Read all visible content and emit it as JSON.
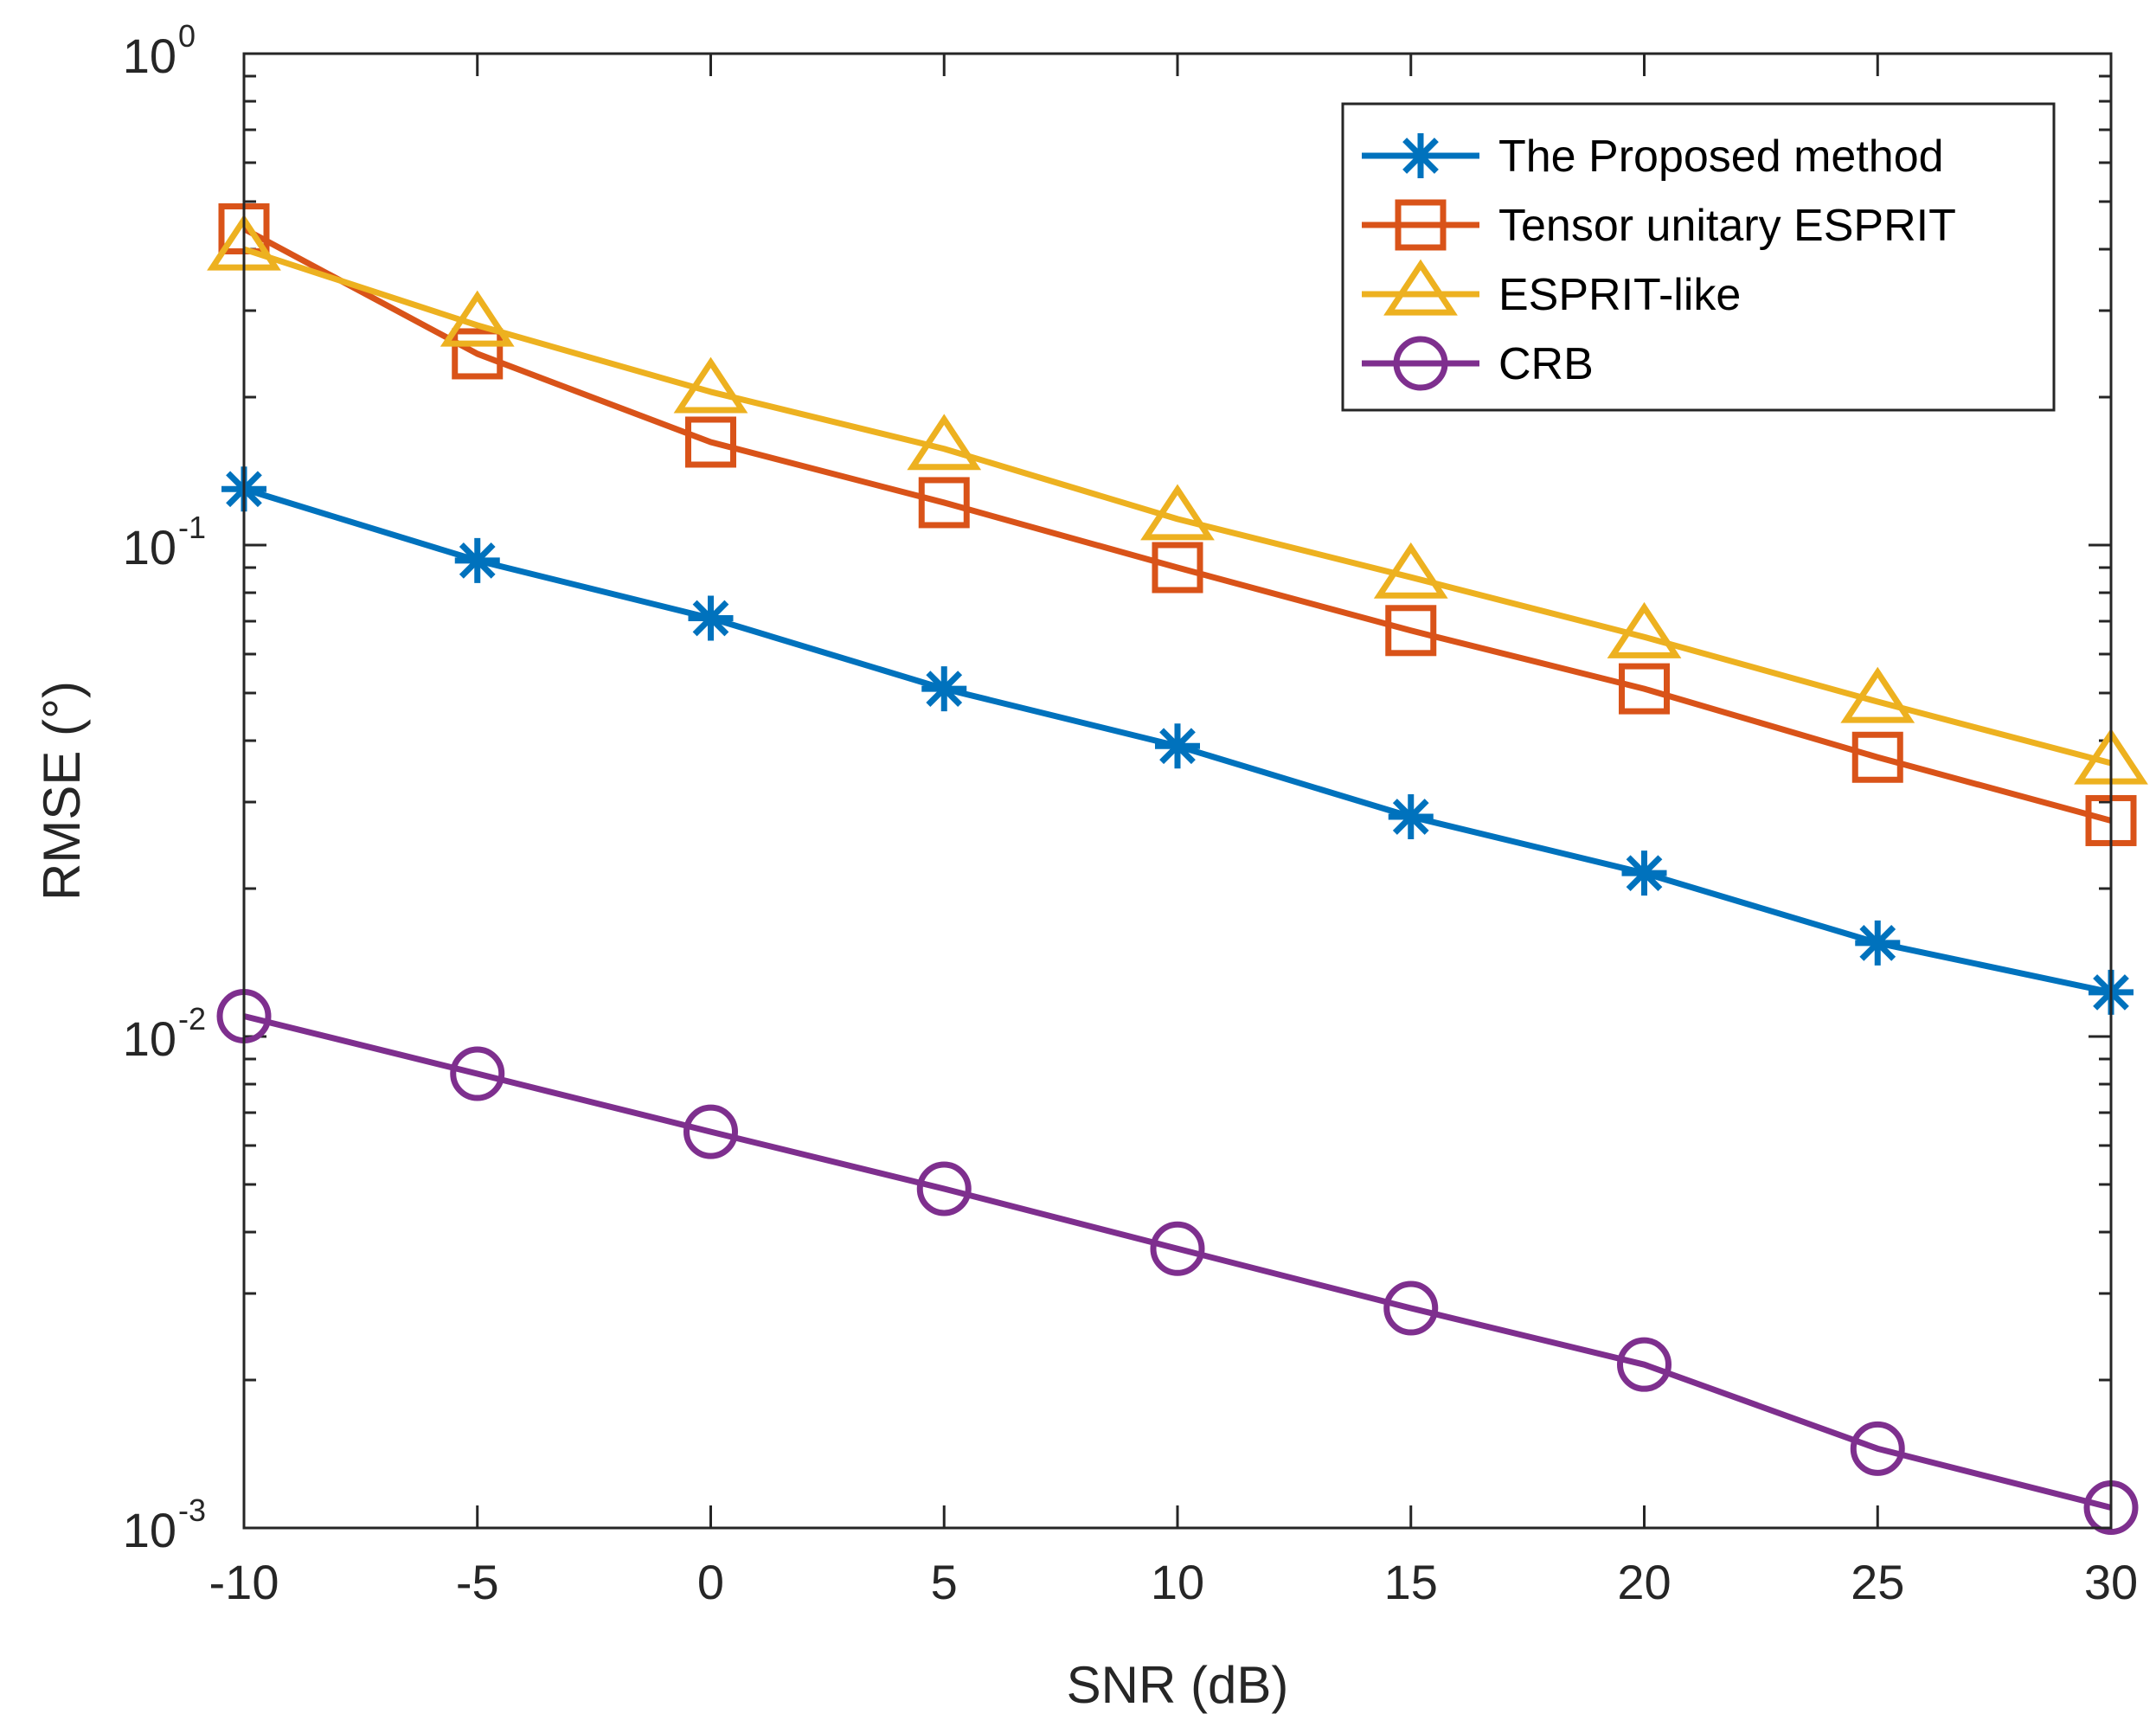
{
  "chart_data": {
    "type": "line",
    "title": "",
    "xlabel": "SNR (dB)",
    "ylabel": "RMSE (°)",
    "yscale": "log",
    "x": [
      -10,
      -5,
      0,
      5,
      10,
      15,
      20,
      25,
      30
    ],
    "xlim": [
      -10,
      30
    ],
    "ylim": [
      0.001,
      1
    ],
    "x_ticks": [
      -10,
      -5,
      0,
      5,
      10,
      15,
      20,
      25,
      30
    ],
    "x_tick_labels": [
      "-10",
      "-5",
      "0",
      "5",
      "10",
      "15",
      "20",
      "25",
      "30"
    ],
    "y_ticks": [
      {
        "value": 0.001,
        "base": "10",
        "exp": "-3"
      },
      {
        "value": 0.01,
        "base": "10",
        "exp": "-2"
      },
      {
        "value": 0.1,
        "base": "10",
        "exp": "-1"
      },
      {
        "value": 1,
        "base": "10",
        "exp": "0"
      }
    ],
    "grid": false,
    "legend_position": "top-right",
    "series": [
      {
        "name": "The Proposed method",
        "color": "#0072BD",
        "marker": "asterisk",
        "values": [
          0.13,
          0.093,
          0.071,
          0.051,
          0.039,
          0.028,
          0.0215,
          0.0155,
          0.0123
        ]
      },
      {
        "name": "Tensor unitary ESPRIT",
        "color": "#D95319",
        "marker": "square",
        "values": [
          0.44,
          0.245,
          0.162,
          0.122,
          0.09,
          0.067,
          0.051,
          0.037,
          0.0275
        ]
      },
      {
        "name": "ESPRIT-like",
        "color": "#EDB120",
        "marker": "triangle",
        "values": [
          0.4,
          0.28,
          0.205,
          0.157,
          0.113,
          0.086,
          0.065,
          0.048,
          0.036
        ]
      },
      {
        "name": "CRB",
        "color": "#7E2F8E",
        "marker": "circle",
        "values": [
          0.011,
          0.0084,
          0.0064,
          0.0049,
          0.0037,
          0.0028,
          0.00215,
          0.00145,
          0.0011
        ]
      }
    ]
  }
}
